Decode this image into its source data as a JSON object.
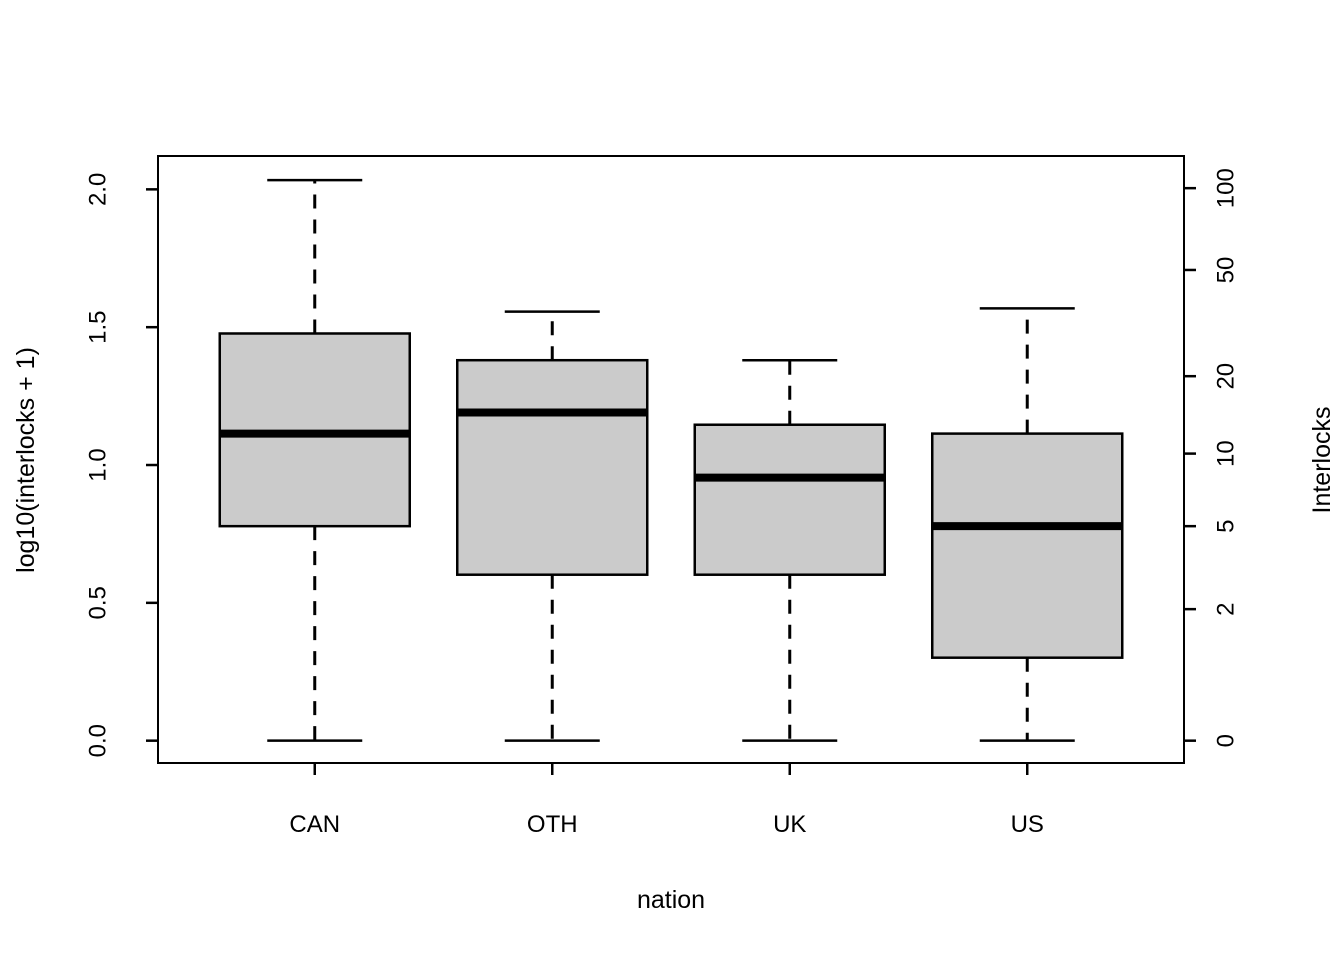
{
  "figure": {
    "background": "#FFFFFF"
  },
  "chart_data": {
    "type": "boxplot",
    "title": "",
    "xlabel": "nation",
    "left_axis": {
      "label": "log10(interlocks + 1)",
      "tick_labels": [
        "0.0",
        "0.5",
        "1.0",
        "1.5",
        "2.0"
      ],
      "tick_values": [
        0.0,
        0.5,
        1.0,
        1.5,
        2.0
      ]
    },
    "right_axis": {
      "label": "Interlocks",
      "tick_labels": [
        "0",
        "2",
        "5",
        "10",
        "20",
        "50",
        "100"
      ],
      "tick_values": [
        0,
        2,
        5,
        10,
        20,
        50,
        100
      ]
    },
    "categories": [
      "CAN",
      "OTH",
      "UK",
      "US"
    ],
    "transform": "log10(interlocks + 1)",
    "series": [
      {
        "name": "CAN",
        "min": 0,
        "q1": 5,
        "median": 12,
        "q3": 29,
        "max": 107,
        "outliers": []
      },
      {
        "name": "OTH",
        "min": 0,
        "q1": 3,
        "median": 14.5,
        "q3": 23,
        "max": 35,
        "outliers": []
      },
      {
        "name": "UK",
        "min": 0,
        "q1": 3,
        "median": 8,
        "q3": 13,
        "max": 23,
        "outliers": []
      },
      {
        "name": "US",
        "min": 0,
        "q1": 1,
        "median": 5,
        "q3": 12,
        "max": 36,
        "outliers": []
      }
    ],
    "ylim_log": [
      -0.081,
      2.121
    ],
    "xlim": [
      0.34,
      4.66
    ],
    "grid": false,
    "legend": false,
    "box_fill": "#CBCBCB",
    "stroke": "#000000",
    "whisker_style": "dashed"
  }
}
